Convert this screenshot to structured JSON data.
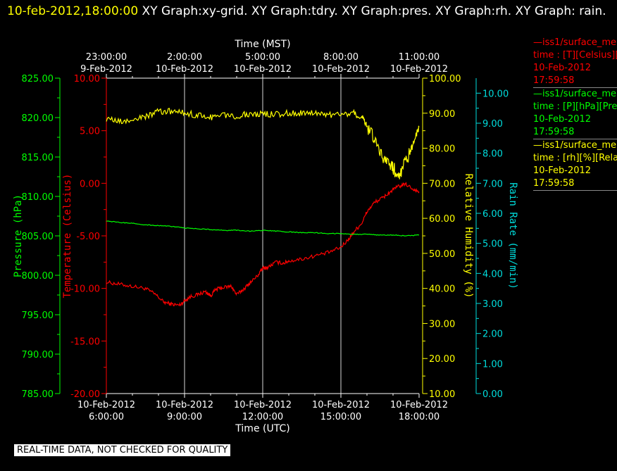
{
  "header": {
    "timestamp": "10-feb-2012,18:00:00",
    "title_text": " XY Graph:xy-grid.  XY Graph:tdry.  XY Graph:pres.  XY Graph:rh.  XY Graph: rain."
  },
  "legend": [
    {
      "name": "—iss1/surface_me",
      "units": "time : [T][Celsius][T",
      "date": "10-Feb-2012",
      "time": "17:59:58",
      "color": "#ff0000"
    },
    {
      "name": "—iss1/surface_me",
      "units": "time : [P][hPa][Pres",
      "date": "10-Feb-2012",
      "time": "17:59:58",
      "color": "#00ff00"
    },
    {
      "name": "—iss1/surface_me",
      "units": "time : [rh][%][Relati",
      "date": "10-Feb-2012",
      "time": "17:59:58",
      "color": "#ffff00"
    }
  ],
  "quality_note": "REAL-TIME DATA, NOT CHECKED FOR QUALITY",
  "chart_data": {
    "type": "line",
    "x_bottom_label": "Time (UTC)",
    "x_top_label": "Time (MST)",
    "x_range_utc_hours": [
      6,
      18
    ],
    "x_bottom_ticks": [
      {
        "date": "10-Feb-2012",
        "time": "6:00:00"
      },
      {
        "date": "10-Feb-2012",
        "time": "9:00:00"
      },
      {
        "date": "10-Feb-2012",
        "time": "12:00:00"
      },
      {
        "date": "10-Feb-2012",
        "time": "15:00:00"
      },
      {
        "date": "10-Feb-2012",
        "time": "18:00:00"
      }
    ],
    "x_top_ticks": [
      {
        "date": "9-Feb-2012",
        "time": "23:00:00"
      },
      {
        "date": "10-Feb-2012",
        "time": "2:00:00"
      },
      {
        "date": "10-Feb-2012",
        "time": "5:00:00"
      },
      {
        "date": "10-Feb-2012",
        "time": "8:00:00"
      },
      {
        "date": "10-Feb-2012",
        "time": "11:00:00"
      }
    ],
    "grid": "vertical",
    "axes": {
      "pressure": {
        "label": "Pressure (hPa)",
        "min": 785,
        "max": 825,
        "ticks": [
          "785.00",
          "790.00",
          "795.00",
          "800.00",
          "805.00",
          "810.00",
          "815.00",
          "820.00",
          "825.00"
        ],
        "color": "#00ff00"
      },
      "temperature": {
        "label": "Temperature (Celsius)",
        "min": -20,
        "max": 10,
        "ticks": [
          "-20.00",
          "-15.00",
          "-10.00",
          "-5.00",
          "0.00",
          "5.00",
          "10.00"
        ],
        "color": "#ff0000"
      },
      "rh": {
        "label": "Relative Humidity (%)",
        "min": 10,
        "max": 100,
        "ticks": [
          "10.00",
          "20.00",
          "30.00",
          "40.00",
          "50.00",
          "60.00",
          "70.00",
          "80.00",
          "90.00",
          "100.00"
        ],
        "color": "#ffff00"
      },
      "rain": {
        "label": "Rain Rate (mm/min)",
        "min": 0,
        "max": 10.5,
        "ticks": [
          "0.00",
          "1.00",
          "2.00",
          "3.00",
          "4.00",
          "5.00",
          "6.00",
          "7.00",
          "8.00",
          "9.00",
          "10.00"
        ],
        "color": "#00dddd"
      }
    },
    "series": [
      {
        "name": "iss1/surface_me T",
        "axis": "temperature",
        "color": "#ff0000",
        "x": [
          6.0,
          6.5,
          7.0,
          7.5,
          7.9,
          8.2,
          8.5,
          8.8,
          9.0,
          9.2,
          9.5,
          9.8,
          10.0,
          10.2,
          10.5,
          10.8,
          11.0,
          11.3,
          11.5,
          11.8,
          12.0,
          12.2,
          12.5,
          12.8,
          13.0,
          13.5,
          14.0,
          14.5,
          15.0,
          15.3,
          15.5,
          15.8,
          16.0,
          16.3,
          16.6,
          16.9,
          17.2,
          17.5,
          17.8,
          18.0
        ],
        "y": [
          -9.4,
          -9.6,
          -9.8,
          -10.0,
          -10.6,
          -11.3,
          -11.5,
          -11.6,
          -11.2,
          -10.8,
          -10.6,
          -10.3,
          -10.7,
          -10.1,
          -9.9,
          -9.8,
          -10.6,
          -10.0,
          -9.5,
          -8.8,
          -8.1,
          -8.0,
          -7.5,
          -7.6,
          -7.4,
          -7.2,
          -6.9,
          -6.6,
          -6.1,
          -5.3,
          -4.6,
          -3.8,
          -2.7,
          -1.8,
          -1.4,
          -0.8,
          -0.3,
          -0.1,
          -0.6,
          -0.8
        ]
      },
      {
        "name": "iss1/surface_me P",
        "axis": "pressure",
        "color": "#00ff00",
        "x": [
          6.0,
          6.5,
          7.0,
          7.5,
          8.0,
          8.5,
          9.0,
          9.5,
          10.0,
          10.5,
          11.0,
          11.5,
          12.0,
          12.5,
          13.0,
          13.5,
          14.0,
          14.5,
          15.0,
          15.5,
          16.0,
          16.5,
          17.0,
          17.5,
          18.0
        ],
        "y": [
          806.9,
          806.7,
          806.6,
          806.4,
          806.3,
          806.2,
          806.0,
          805.9,
          805.8,
          805.7,
          805.7,
          805.6,
          805.7,
          805.6,
          805.5,
          805.4,
          805.4,
          805.3,
          805.3,
          805.2,
          805.2,
          805.1,
          805.1,
          805.0,
          805.1
        ]
      },
      {
        "name": "iss1/surface_me rh",
        "axis": "rh",
        "color": "#ffff00",
        "x": [
          6.0,
          6.5,
          7.0,
          7.5,
          8.0,
          8.5,
          9.0,
          9.5,
          10.0,
          10.5,
          11.0,
          11.5,
          12.0,
          12.5,
          13.0,
          13.5,
          14.0,
          14.5,
          15.0,
          15.5,
          15.8,
          16.0,
          16.3,
          16.6,
          16.9,
          17.1,
          17.3,
          17.5,
          17.7,
          17.9,
          18.0
        ],
        "y": [
          88.5,
          87.5,
          88.0,
          89.0,
          90.5,
          90.5,
          90.0,
          89.5,
          88.8,
          89.5,
          89.2,
          89.8,
          89.8,
          89.7,
          90.0,
          90.0,
          90.2,
          89.5,
          89.6,
          90.0,
          89.0,
          86.5,
          82.0,
          78.0,
          75.0,
          73.5,
          73.0,
          76.5,
          80.0,
          84.0,
          86.0
        ]
      }
    ]
  }
}
